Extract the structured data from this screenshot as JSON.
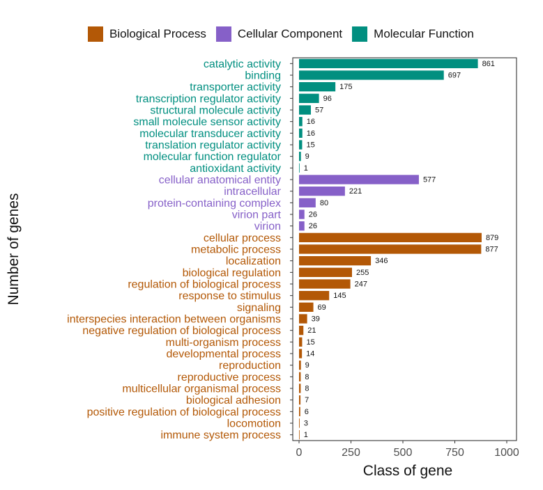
{
  "legend": [
    {
      "name": "Biological Process",
      "color": "#B35806"
    },
    {
      "name": "Cellular Component",
      "color": "#8660C8"
    },
    {
      "name": "Molecular Function",
      "color": "#018F80"
    }
  ],
  "chart_data": {
    "type": "bar",
    "orientation": "horizontal",
    "xlabel": "Class of gene",
    "ylabel": "Number of genes",
    "xlim": [
      0,
      1000
    ],
    "xticks": [
      0,
      250,
      500,
      750,
      1000
    ],
    "legend_position": "top",
    "grid": false,
    "categories": [
      {
        "label": "catalytic activity",
        "value": 861,
        "group": "Molecular Function"
      },
      {
        "label": "binding",
        "value": 697,
        "group": "Molecular Function"
      },
      {
        "label": "transporter activity",
        "value": 175,
        "group": "Molecular Function"
      },
      {
        "label": "transcription regulator activity",
        "value": 96,
        "group": "Molecular Function"
      },
      {
        "label": "structural molecule activity",
        "value": 57,
        "group": "Molecular Function"
      },
      {
        "label": "small molecule sensor activity",
        "value": 16,
        "group": "Molecular Function"
      },
      {
        "label": "molecular transducer activity",
        "value": 16,
        "group": "Molecular Function"
      },
      {
        "label": "translation regulator activity",
        "value": 15,
        "group": "Molecular Function"
      },
      {
        "label": "molecular function regulator",
        "value": 9,
        "group": "Molecular Function"
      },
      {
        "label": "antioxidant activity",
        "value": 1,
        "group": "Molecular Function"
      },
      {
        "label": "cellular anatomical entity",
        "value": 577,
        "group": "Cellular Component"
      },
      {
        "label": "intracellular",
        "value": 221,
        "group": "Cellular Component"
      },
      {
        "label": "protein-containing complex",
        "value": 80,
        "group": "Cellular Component"
      },
      {
        "label": "virion part",
        "value": 26,
        "group": "Cellular Component"
      },
      {
        "label": "virion",
        "value": 26,
        "group": "Cellular Component"
      },
      {
        "label": "cellular process",
        "value": 879,
        "group": "Biological Process"
      },
      {
        "label": "metabolic process",
        "value": 877,
        "group": "Biological Process"
      },
      {
        "label": "localization",
        "value": 346,
        "group": "Biological Process"
      },
      {
        "label": "biological regulation",
        "value": 255,
        "group": "Biological Process"
      },
      {
        "label": "regulation of biological process",
        "value": 247,
        "group": "Biological Process"
      },
      {
        "label": "response to stimulus",
        "value": 145,
        "group": "Biological Process"
      },
      {
        "label": "signaling",
        "value": 69,
        "group": "Biological Process"
      },
      {
        "label": "interspecies interaction between organisms",
        "value": 39,
        "group": "Biological Process"
      },
      {
        "label": "negative regulation of biological process",
        "value": 21,
        "group": "Biological Process"
      },
      {
        "label": "multi-organism process",
        "value": 15,
        "group": "Biological Process"
      },
      {
        "label": "developmental process",
        "value": 14,
        "group": "Biological Process"
      },
      {
        "label": "reproduction",
        "value": 9,
        "group": "Biological Process"
      },
      {
        "label": "reproductive process",
        "value": 8,
        "group": "Biological Process"
      },
      {
        "label": "multicellular organismal process",
        "value": 8,
        "group": "Biological Process"
      },
      {
        "label": "biological adhesion",
        "value": 7,
        "group": "Biological Process"
      },
      {
        "label": "positive regulation of biological process",
        "value": 6,
        "group": "Biological Process"
      },
      {
        "label": "locomotion",
        "value": 3,
        "group": "Biological Process"
      },
      {
        "label": "immune system process",
        "value": 1,
        "group": "Biological Process"
      }
    ]
  }
}
